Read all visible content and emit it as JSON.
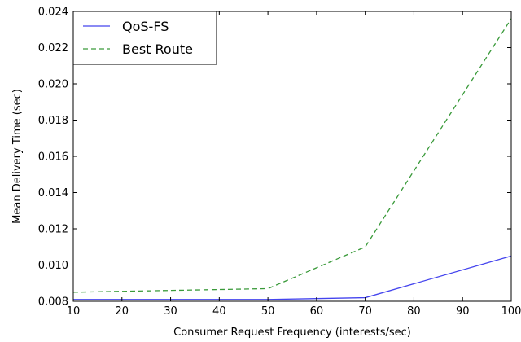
{
  "chart_data": {
    "type": "line",
    "xlabel": "Consumer Request Frequency (interests/sec)",
    "ylabel": "Mean Delivery Time (sec)",
    "xlim": [
      10,
      100
    ],
    "ylim": [
      0.008,
      0.024
    ],
    "xticks": [
      "10",
      "20",
      "30",
      "40",
      "50",
      "60",
      "70",
      "80",
      "90",
      "100"
    ],
    "yticks": [
      "0.008",
      "0.010",
      "0.012",
      "0.014",
      "0.016",
      "0.018",
      "0.020",
      "0.022",
      "0.024"
    ],
    "grid": false,
    "legend_position": "top-left",
    "series": [
      {
        "name": "QoS-FS",
        "color": "#4444ee",
        "style": "solid",
        "x": [
          10,
          50,
          70,
          100
        ],
        "y": [
          0.0081,
          0.0081,
          0.0082,
          0.0105
        ]
      },
      {
        "name": "Best Route",
        "color": "#3a9a3a",
        "style": "dashed",
        "x": [
          10,
          50,
          70,
          100
        ],
        "y": [
          0.0085,
          0.0087,
          0.011,
          0.0236
        ]
      }
    ]
  }
}
